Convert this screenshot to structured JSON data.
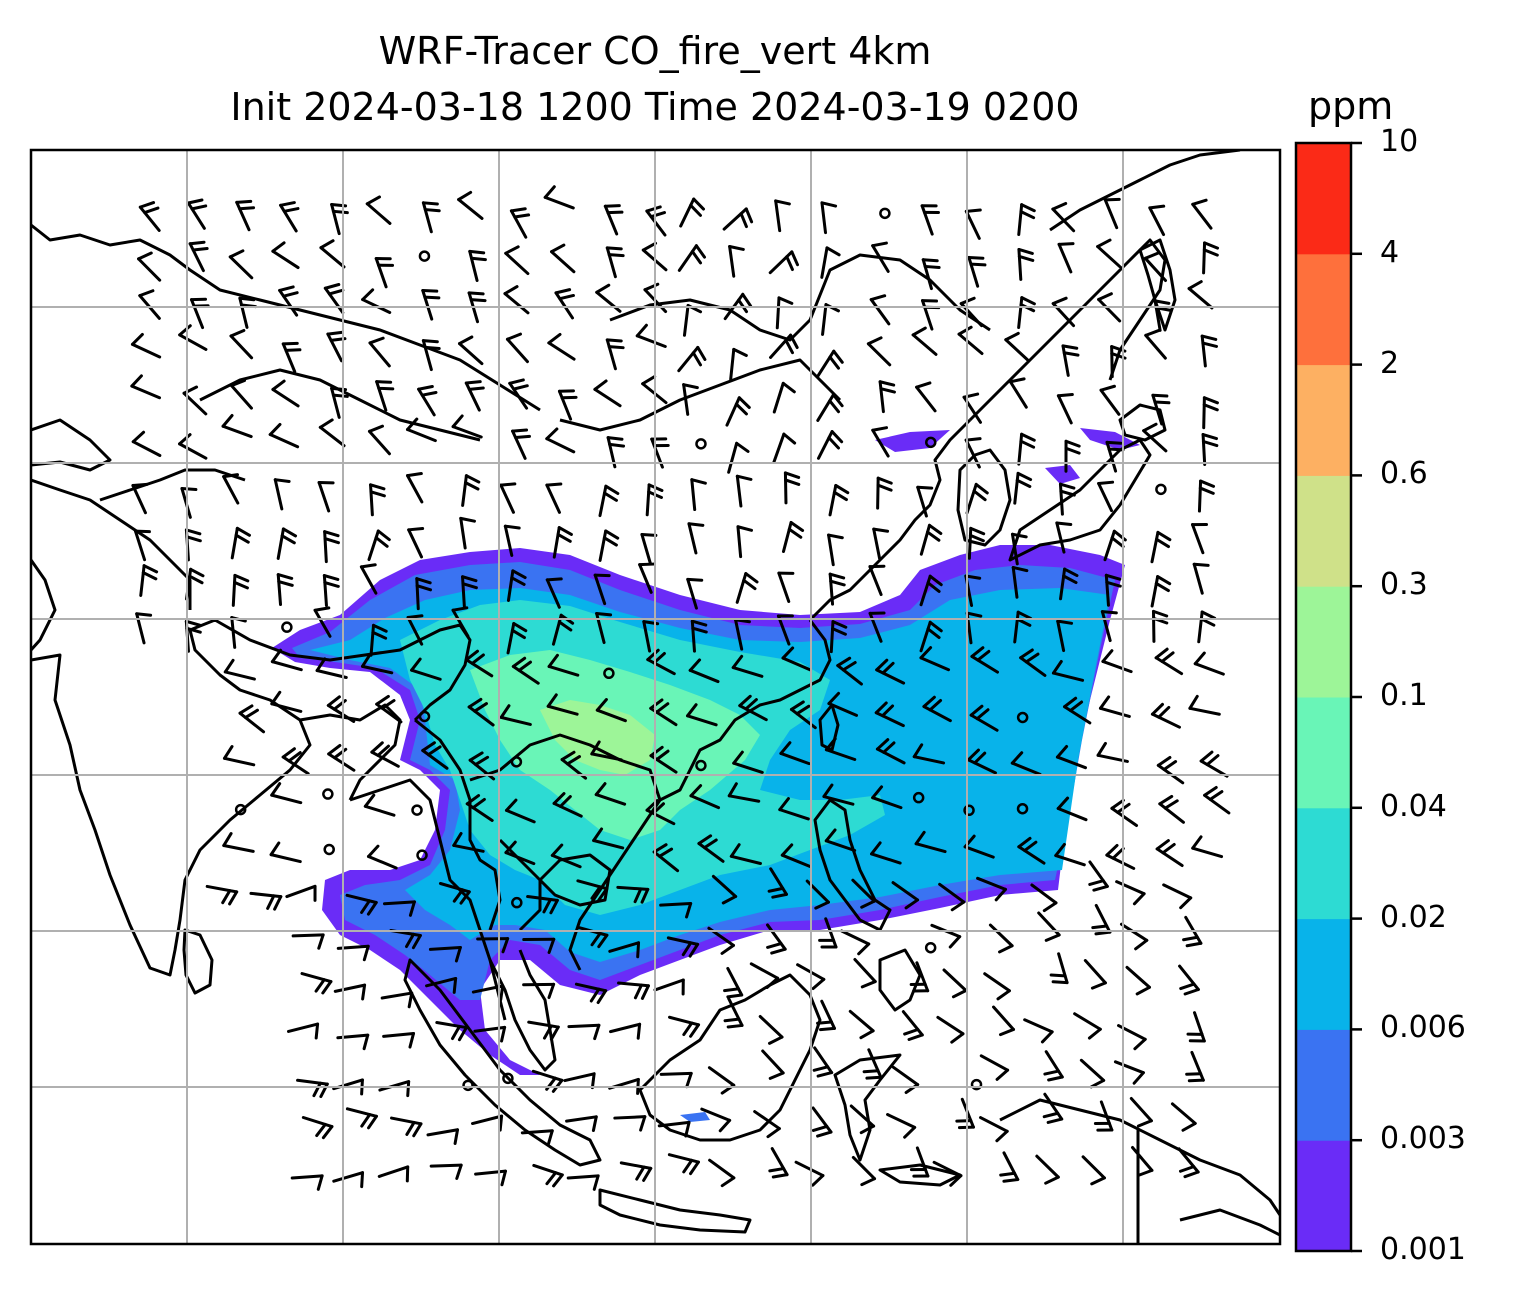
{
  "title": {
    "line1": "WRF-Tracer CO_fire_vert 4km",
    "line2": "Init 2024-03-18 1200 Time 2024-03-19 0200"
  },
  "colorbar": {
    "unit": "ppm",
    "ticks": [
      "0.001",
      "0.003",
      "0.006",
      "0.02",
      "0.04",
      "0.1",
      "0.3",
      "0.6",
      "2",
      "4",
      "10"
    ],
    "colors": [
      "#6a2cf7",
      "#3a73f2",
      "#08b3ea",
      "#2ddbd3",
      "#69f5b7",
      "#9df598",
      "#cfe189",
      "#fdb062",
      "#fe703c",
      "#fb2a17"
    ]
  },
  "map": {
    "field": "CO_fire_vert",
    "plume_color_scale": "rainbow",
    "gridlines": true,
    "coastlines_color": "#000000",
    "wind_barbs": true
  }
}
